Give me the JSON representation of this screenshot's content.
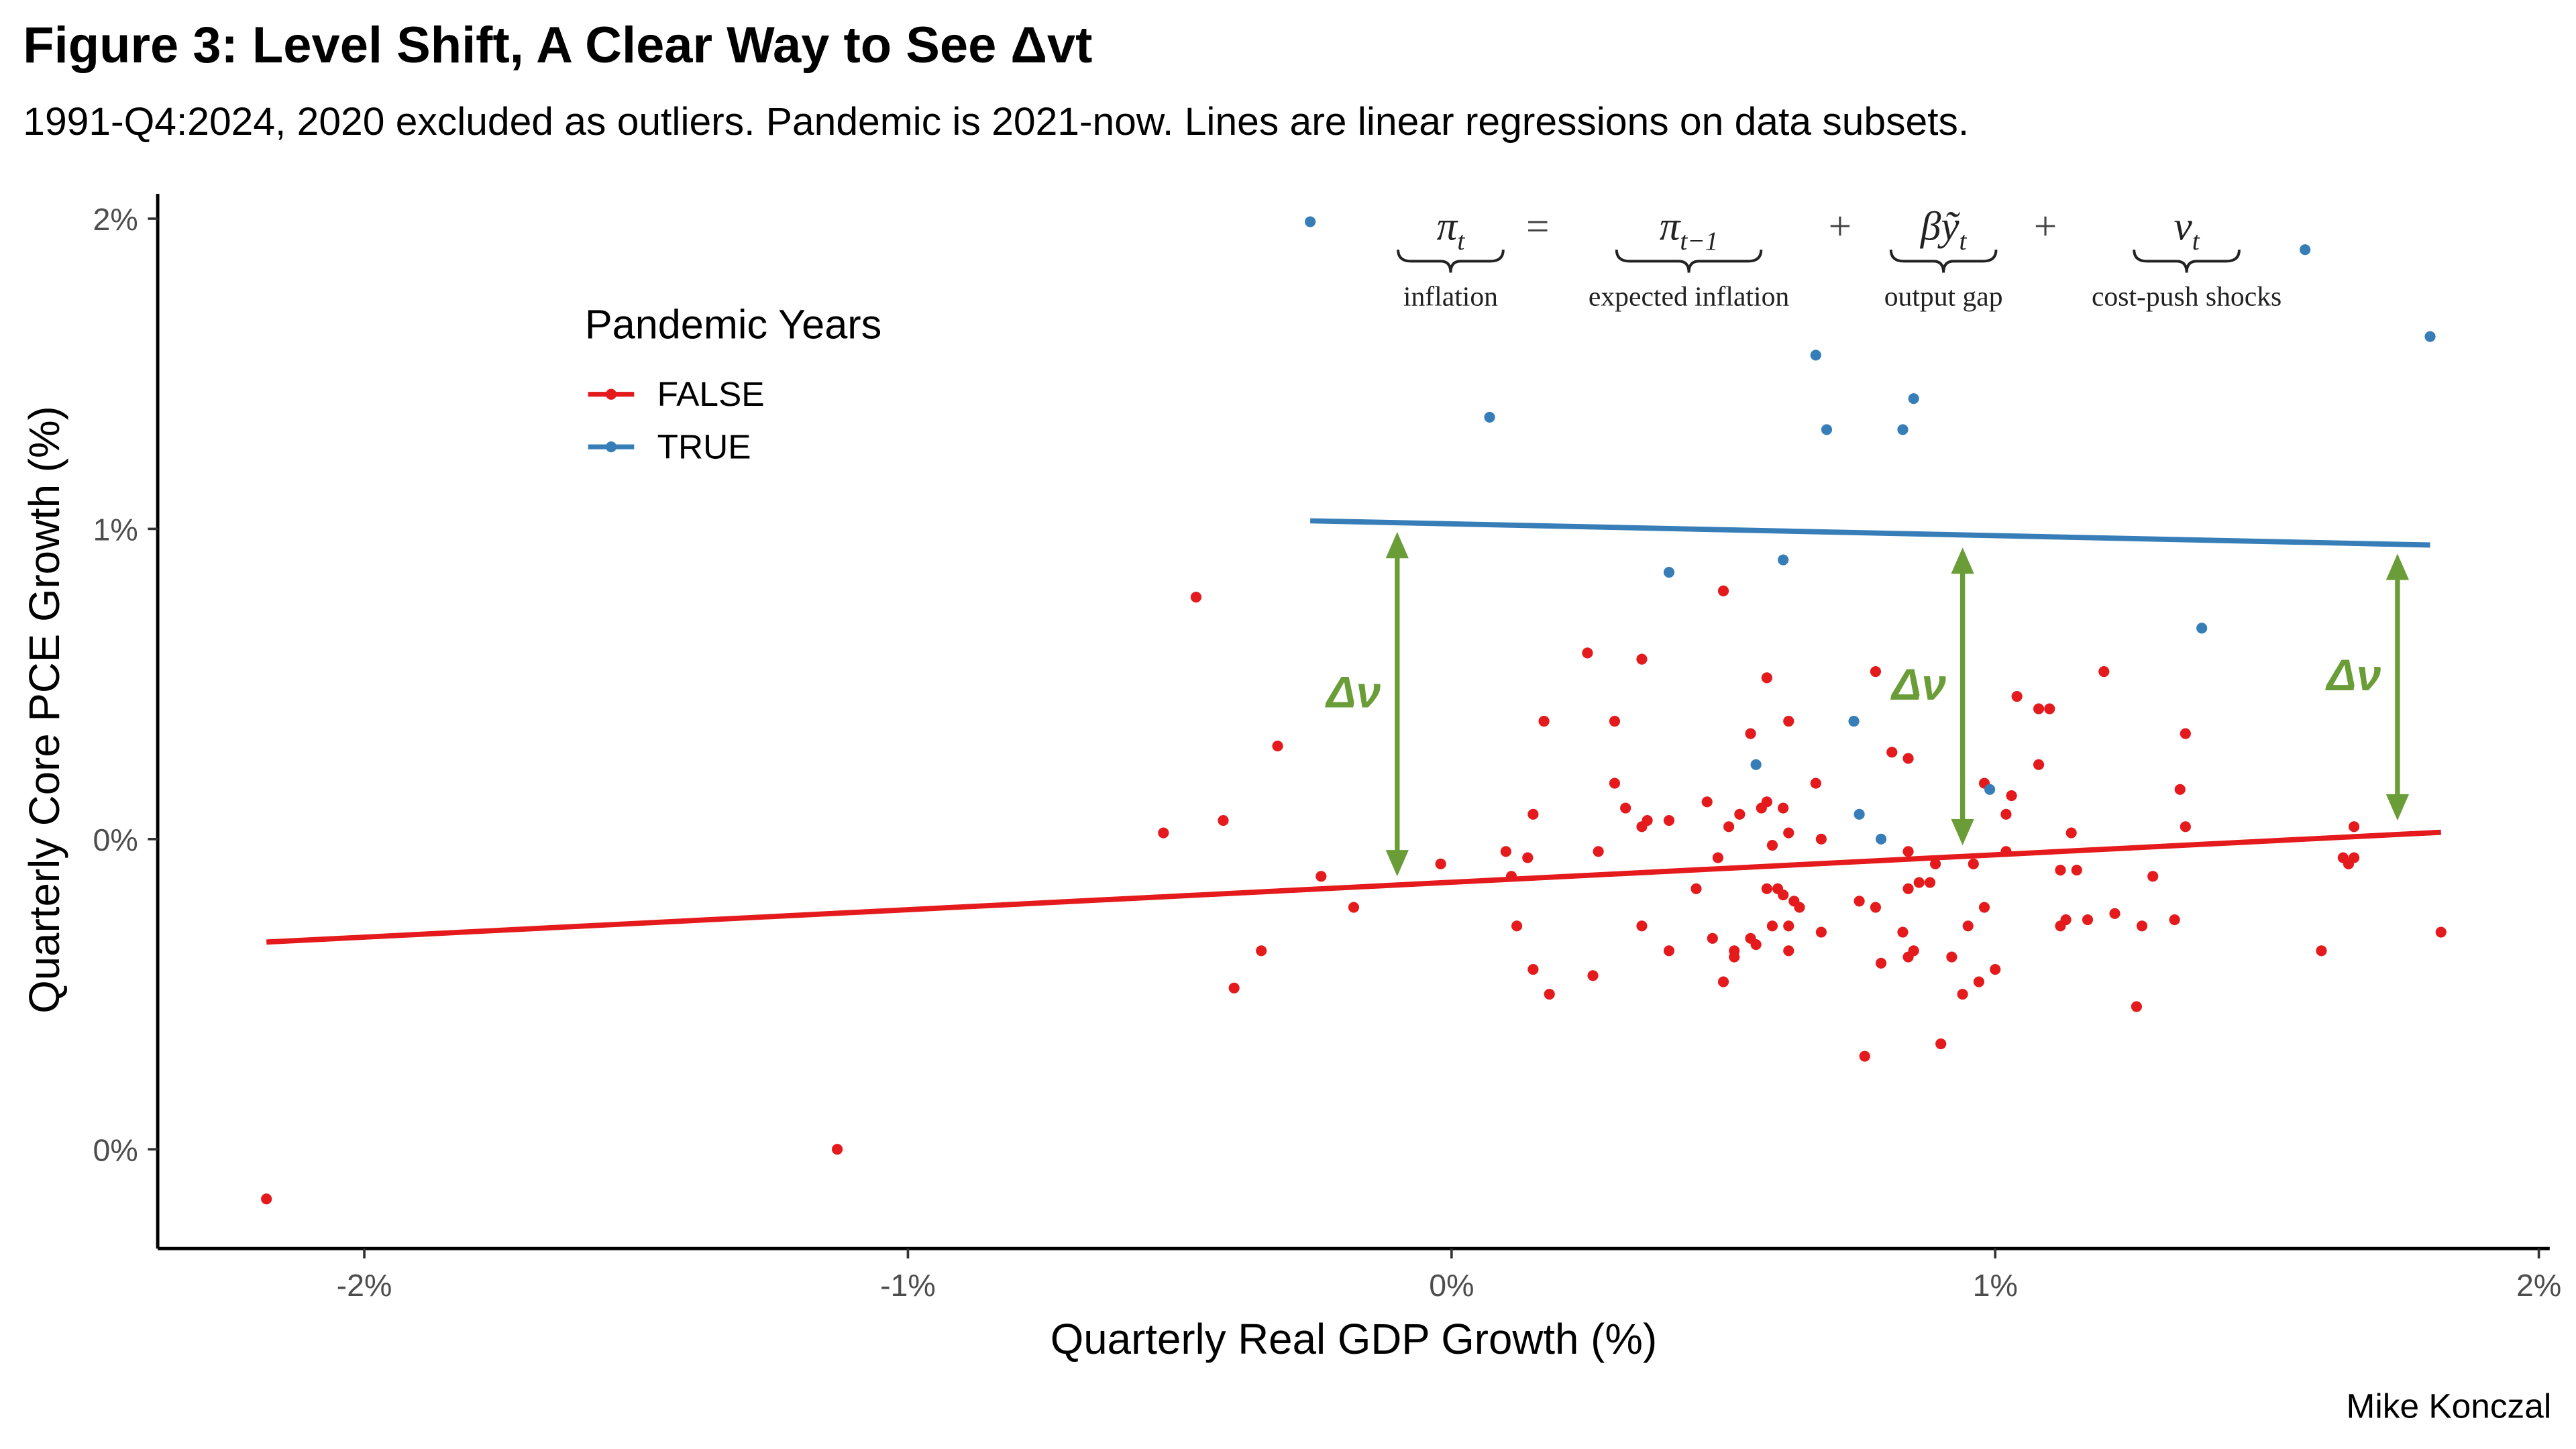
{
  "chart_data": {
    "type": "scatter",
    "title": "Figure 3: Level Shift, A Clear Way to See Δvt",
    "subtitle": "1991-Q4:2024, 2020 excluded as outliers. Pandemic is 2021-now. Lines are linear regressions on data subsets.",
    "x_label": "Quarterly Real GDP Growth (%)",
    "y_label": "Quarterly Core PCE Growth (%)",
    "caption": "Mike Konczal",
    "legend_title": "Pandemic Years",
    "legend_position": "top-left",
    "xlim": [
      -2.38,
      2.02
    ],
    "ylim": [
      -0.16,
      1.54
    ],
    "xticks": [
      {
        "value": -2,
        "label": "-2%"
      },
      {
        "value": -1,
        "label": "-1%"
      },
      {
        "value": 0,
        "label": "0%"
      },
      {
        "value": 1,
        "label": "1%"
      },
      {
        "value": 2,
        "label": "2%"
      }
    ],
    "yticks": [
      {
        "value": 0,
        "label": "0%"
      },
      {
        "value": 0.5,
        "label": "0%"
      },
      {
        "value": 1,
        "label": "1%"
      },
      {
        "value": 1.5,
        "label": "2%"
      }
    ],
    "series": [
      {
        "name": "FALSE",
        "color": "#e41a1c",
        "x": [
          -2.18,
          -1.13,
          -0.47,
          -0.32,
          -0.42,
          -0.53,
          -0.24,
          -0.18,
          -0.35,
          -0.4,
          -0.02,
          0.5,
          0.25,
          0.35,
          0.17,
          0.3,
          0.58,
          0.78,
          0.62,
          0.55,
          0.81,
          0.84,
          1.2,
          1.04,
          1.08,
          1.1,
          1.35,
          0.3,
          0.67,
          1.08,
          0.98,
          1.34,
          1.03,
          0.15,
          0.32,
          0.35,
          0.36,
          0.4,
          0.47,
          0.58,
          0.57,
          0.61,
          0.53,
          0.51,
          0.62,
          0.68,
          0.59,
          1.02,
          1.02,
          1.14,
          1.35,
          1.66,
          0.1,
          0.27,
          0.14,
          0.11,
          0.49,
          0.84,
          0.88,
          0.86,
          0.89,
          0.96,
          1.12,
          1.15,
          1.29,
          1.64,
          1.65,
          1.66,
          0.45,
          0.58,
          0.6,
          0.61,
          0.63,
          0.64,
          0.75,
          0.78,
          0.84,
          0.98,
          1.13,
          1.17,
          1.22,
          1.27,
          1.33,
          0.62,
          0.59,
          0.68,
          0.83,
          0.95,
          1.12,
          0.12,
          0.35,
          0.48,
          0.55,
          0.56,
          0.52,
          0.52,
          0.62,
          0.85,
          0.84,
          0.92,
          0.79,
          1.6,
          1.82,
          0.4,
          0.15,
          0.26,
          0.18,
          0.5,
          1.0,
          0.97,
          0.94,
          1.26,
          0.9,
          0.76
        ],
        "y": [
          -0.08,
          0.0,
          0.89,
          0.65,
          0.53,
          0.51,
          0.44,
          0.39,
          0.32,
          0.26,
          0.46,
          0.9,
          0.8,
          0.79,
          0.69,
          0.69,
          0.76,
          0.77,
          0.69,
          0.67,
          0.64,
          0.63,
          0.77,
          0.73,
          0.71,
          0.71,
          0.67,
          0.59,
          0.59,
          0.62,
          0.59,
          0.58,
          0.57,
          0.54,
          0.55,
          0.52,
          0.53,
          0.53,
          0.56,
          0.56,
          0.55,
          0.55,
          0.54,
          0.52,
          0.51,
          0.5,
          0.49,
          0.54,
          0.48,
          0.51,
          0.52,
          0.52,
          0.48,
          0.48,
          0.47,
          0.44,
          0.47,
          0.48,
          0.43,
          0.43,
          0.46,
          0.46,
          0.45,
          0.45,
          0.44,
          0.47,
          0.46,
          0.47,
          0.42,
          0.42,
          0.42,
          0.41,
          0.4,
          0.39,
          0.4,
          0.39,
          0.42,
          0.39,
          0.37,
          0.37,
          0.38,
          0.36,
          0.37,
          0.36,
          0.36,
          0.35,
          0.35,
          0.36,
          0.36,
          0.36,
          0.36,
          0.34,
          0.34,
          0.33,
          0.32,
          0.31,
          0.32,
          0.32,
          0.31,
          0.31,
          0.3,
          0.32,
          0.35,
          0.32,
          0.29,
          0.28,
          0.25,
          0.27,
          0.29,
          0.27,
          0.25,
          0.23,
          0.17,
          0.15
        ],
        "fit": {
          "x": [
            -2.18,
            1.82
          ],
          "y": [
            0.334,
            0.511
          ]
        }
      },
      {
        "name": "TRUE",
        "color": "#377eb8",
        "x": [
          -0.26,
          0.07,
          0.67,
          0.85,
          0.69,
          0.83,
          1.57,
          1.8,
          0.4,
          0.61,
          1.38,
          0.74,
          0.56,
          0.75,
          0.79,
          0.99
        ],
        "y": [
          1.495,
          1.18,
          1.28,
          1.21,
          1.16,
          1.16,
          1.45,
          1.31,
          0.93,
          0.95,
          0.84,
          0.69,
          0.62,
          0.54,
          0.5,
          0.58
        ],
        "fit": {
          "x": [
            -0.26,
            1.8
          ],
          "y": [
            1.013,
            0.974
          ]
        }
      }
    ],
    "annotations": [
      {
        "label": "Δν",
        "x": -0.1,
        "y_from": 0.995,
        "y_to": 0.44,
        "color": "#6a9d37"
      },
      {
        "label": "Δν",
        "x": 0.94,
        "y_from": 0.97,
        "y_to": 0.49,
        "color": "#6a9d37"
      },
      {
        "label": "Δν",
        "x": 1.74,
        "y_from": 0.96,
        "y_to": 0.53,
        "color": "#6a9d37"
      }
    ],
    "equation": {
      "terms": [
        {
          "base": "π",
          "sub": "t",
          "caption": "inflation"
        },
        {
          "base": "π",
          "sub": "t−1",
          "caption": "expected inflation"
        },
        {
          "base": "βỹ",
          "sub": "t",
          "caption": "output gap"
        },
        {
          "base": "v",
          "sub": "t",
          "caption": "cost-push shocks"
        }
      ],
      "operators": [
        "=",
        "+",
        "+"
      ]
    }
  }
}
